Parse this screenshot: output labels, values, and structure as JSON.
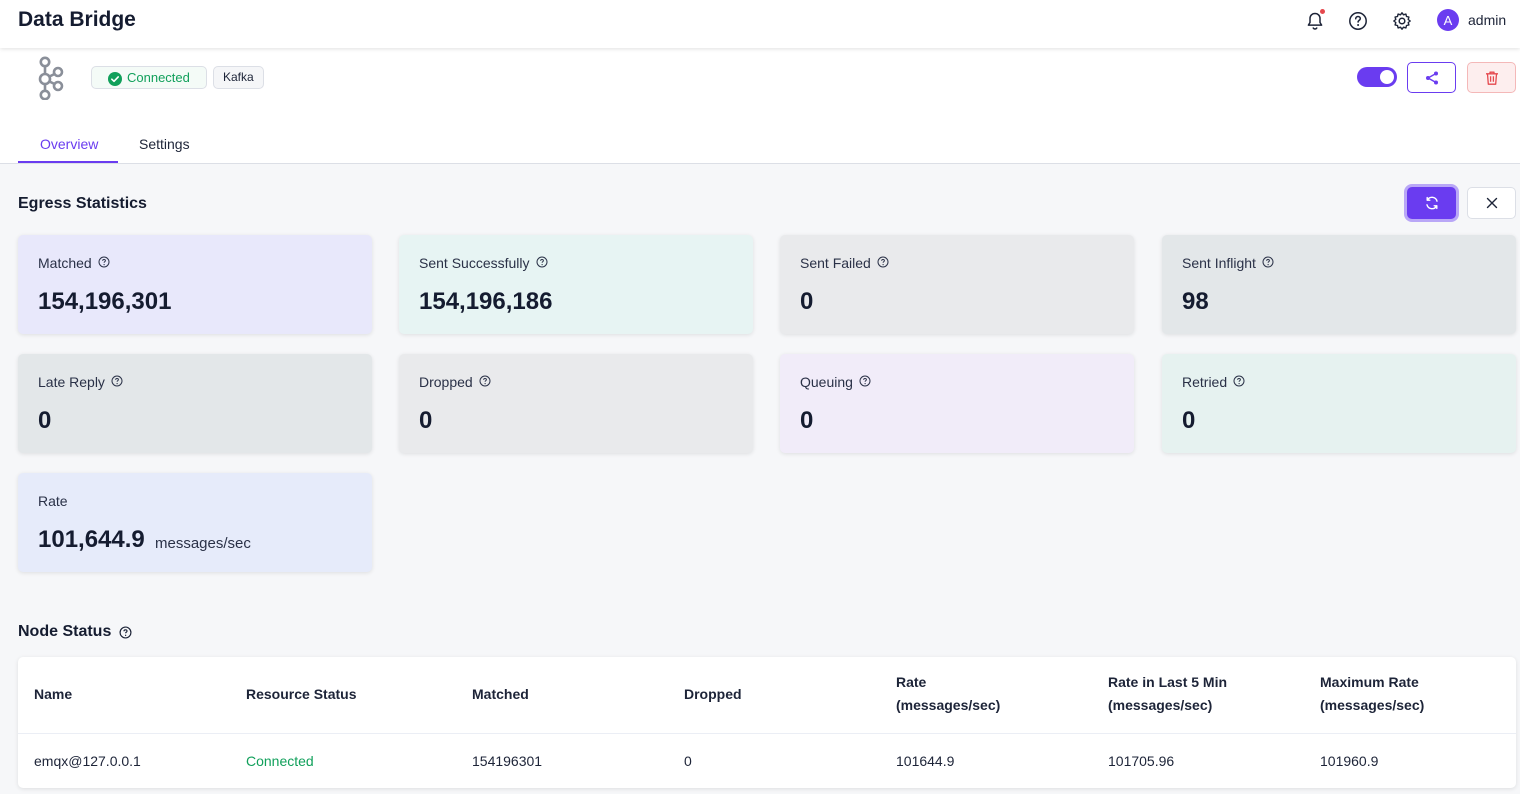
{
  "app": {
    "title": "Data Bridge",
    "user": "admin",
    "avatar_letter": "A"
  },
  "bridge": {
    "status": "Connected",
    "type": "Kafka",
    "enabled": true
  },
  "tabs": [
    {
      "label": "Overview",
      "active": true
    },
    {
      "label": "Settings",
      "active": false
    }
  ],
  "egress": {
    "title": "Egress Statistics",
    "cards": [
      {
        "label": "Matched",
        "value": "154,196,301",
        "color": "#e8e8fb"
      },
      {
        "label": "Sent Successfully",
        "value": "154,196,186",
        "color": "#e7f4f3"
      },
      {
        "label": "Sent Failed",
        "value": "0",
        "color": "#e9eaec"
      },
      {
        "label": "Sent Inflight",
        "value": "98",
        "color": "#e3e7e9"
      },
      {
        "label": "Late Reply",
        "value": "0",
        "color": "#e3e7e9"
      },
      {
        "label": "Dropped",
        "value": "0",
        "color": "#e9eaec"
      },
      {
        "label": "Queuing",
        "value": "0",
        "color": "#f1ecf9"
      },
      {
        "label": "Retried",
        "value": "0",
        "color": "#e6f2f0"
      },
      {
        "label": "Rate",
        "value": "101,644.9",
        "unit": "messages/sec",
        "color": "#e6ebfa"
      }
    ]
  },
  "node_status": {
    "title": "Node Status",
    "columns": [
      {
        "line1": "Name",
        "line2": ""
      },
      {
        "line1": "Resource Status",
        "line2": ""
      },
      {
        "line1": "Matched",
        "line2": ""
      },
      {
        "line1": "Dropped",
        "line2": ""
      },
      {
        "line1": "Rate",
        "line2": "(messages/sec)"
      },
      {
        "line1": "Rate in Last 5 Min",
        "line2": "(messages/sec)"
      },
      {
        "line1": "Maximum Rate",
        "line2": "(messages/sec)"
      }
    ],
    "rows": [
      {
        "name": "emqx@127.0.0.1",
        "status": "Connected",
        "matched": "154196301",
        "dropped": "0",
        "rate": "101644.9",
        "rate_5min": "101705.96",
        "max_rate": "101960.9"
      }
    ]
  },
  "colors": {
    "accent": "#6a3cf0",
    "success": "#11a05b",
    "danger": "#e5484d"
  },
  "icons": [
    "bell-icon",
    "help-icon",
    "gear-icon",
    "kafka-logo",
    "check-circle-icon",
    "share-icon",
    "trash-icon",
    "refresh-icon",
    "close-icon",
    "question-circle-icon"
  ]
}
